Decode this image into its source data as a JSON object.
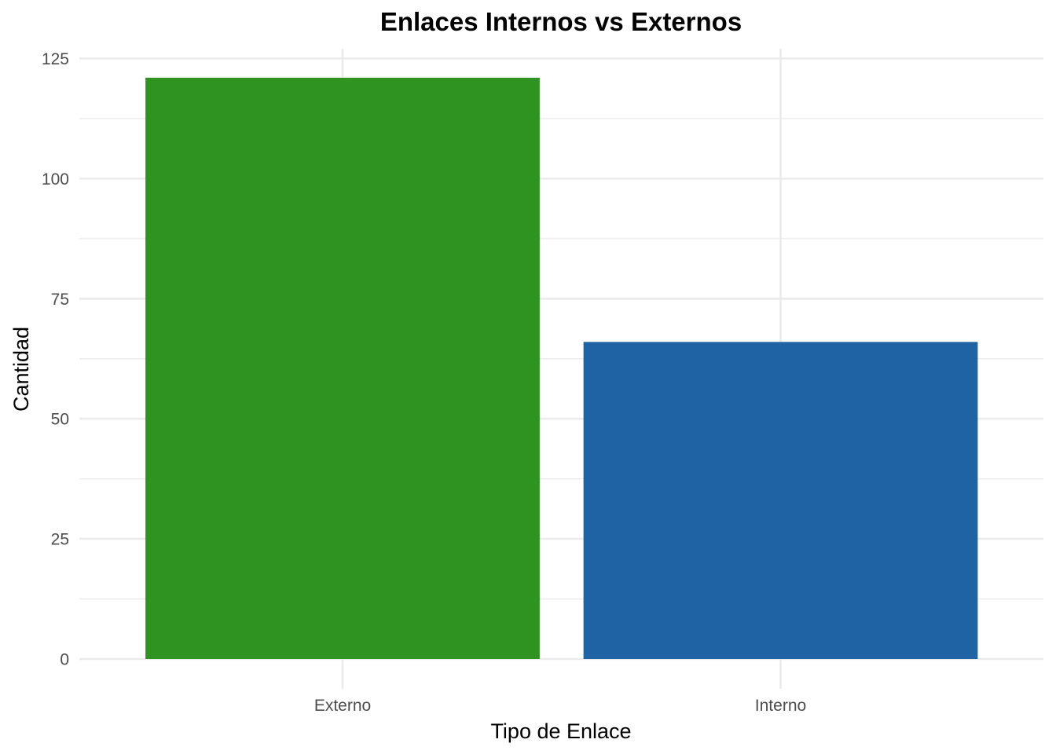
{
  "chart_data": {
    "type": "bar",
    "title": "Enlaces Internos vs Externos",
    "xlabel": "Tipo de Enlace",
    "ylabel": "Cantidad",
    "categories": [
      "Externo",
      "Interno"
    ],
    "values": [
      121,
      66
    ],
    "colors": [
      "#2e9321",
      "#1f63a5"
    ],
    "ylim": [
      0,
      127.4
    ],
    "yticks": [
      0,
      25,
      50,
      75,
      100,
      125
    ],
    "yminor": [
      12.5,
      37.5,
      62.5,
      87.5,
      112.5
    ],
    "grid": true,
    "legend": "none"
  }
}
